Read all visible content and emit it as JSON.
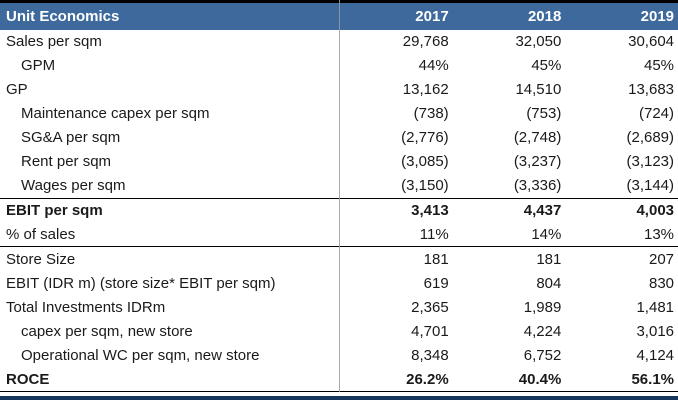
{
  "chart_data": {
    "type": "table",
    "title": "Unit Economics",
    "years": [
      "2017",
      "2018",
      "2019"
    ],
    "rows": [
      {
        "label": "Sales per sqm",
        "values": [
          "29,768",
          "32,050",
          "30,604"
        ]
      },
      {
        "label": "GPM",
        "values": [
          "44%",
          "45%",
          "45%"
        ],
        "indent": true
      },
      {
        "label": "GP",
        "values": [
          "13,162",
          "14,510",
          "13,683"
        ]
      },
      {
        "label": "Maintenance capex per sqm",
        "values": [
          "(738)",
          "(753)",
          "(724)"
        ],
        "indent": true
      },
      {
        "label": "SG&A per sqm",
        "values": [
          "(2,776)",
          "(2,748)",
          "(2,689)"
        ],
        "indent": true
      },
      {
        "label": "Rent per sqm",
        "values": [
          "(3,085)",
          "(3,237)",
          "(3,123)"
        ],
        "indent": true
      },
      {
        "label": "Wages per sqm",
        "values": [
          "(3,150)",
          "(3,336)",
          "(3,144)"
        ],
        "indent": true
      },
      {
        "label": "EBIT per sqm",
        "values": [
          "3,413",
          "4,437",
          "4,003"
        ],
        "bold": true,
        "border_top": true
      },
      {
        "label": "% of sales",
        "values": [
          "11%",
          "14%",
          "13%"
        ],
        "border_bottom": true
      },
      {
        "label": "Store Size",
        "values": [
          "181",
          "181",
          "207"
        ]
      },
      {
        "label": "EBIT (IDR m) (store size* EBIT per sqm)",
        "values": [
          "619",
          "804",
          "830"
        ]
      },
      {
        "label": "Total Investments IDRm",
        "values": [
          "2,365",
          "1,989",
          "1,481"
        ]
      },
      {
        "label": "capex per sqm, new store",
        "values": [
          "4,701",
          "4,224",
          "3,016"
        ],
        "indent": true
      },
      {
        "label": "Operational WC per sqm, new store",
        "values": [
          "8,348",
          "6,752",
          "4,124"
        ],
        "indent": true
      },
      {
        "label": "ROCE",
        "values": [
          "26.2%",
          "40.4%",
          "56.1%"
        ],
        "bold": true
      }
    ]
  },
  "colors": {
    "header_bg": "#3E699C",
    "header_text": "#FFFFFF",
    "bottom_bar": "#17365D",
    "divider": "#9E9E9E",
    "rule": "#000000",
    "text": "#1A1A1A"
  }
}
